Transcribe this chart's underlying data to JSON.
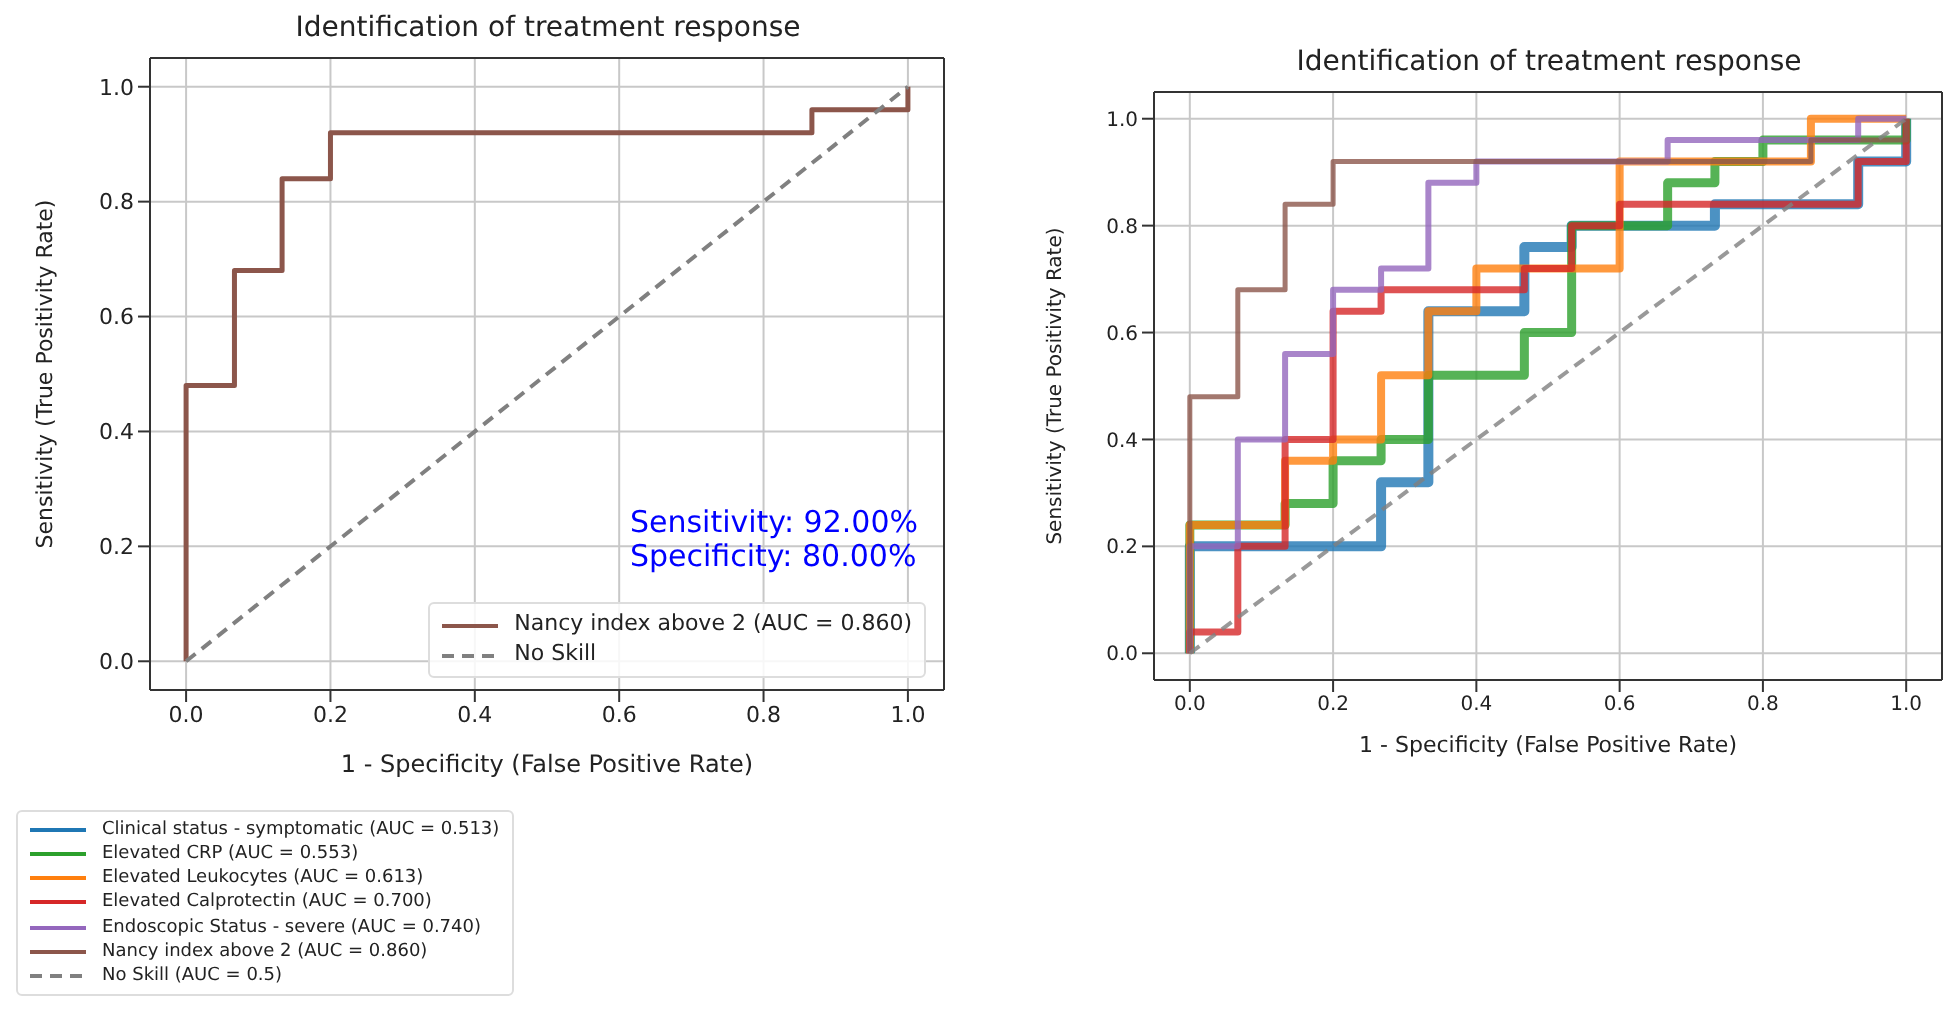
{
  "chart_data": [
    {
      "type": "step",
      "title": "Identification of treatment response",
      "xlabel": "1 - Specificity (False Positive Rate)",
      "ylabel": "Sensitivity (True Positivity Rate)",
      "xlim": [
        -0.05,
        1.05
      ],
      "ylim": [
        -0.05,
        1.05
      ],
      "xticks": [
        {
          "value": 0,
          "label": "0.0"
        },
        {
          "value": 0.2,
          "label": "0.2"
        },
        {
          "value": 0.4,
          "label": "0.4"
        },
        {
          "value": 0.6,
          "label": "0.6"
        },
        {
          "value": 0.8,
          "label": "0.8"
        },
        {
          "value": 1,
          "label": "1.0"
        }
      ],
      "yticks": [
        {
          "value": 0,
          "label": "0.0"
        },
        {
          "value": 0.2,
          "label": "0.2"
        },
        {
          "value": 0.4,
          "label": "0.4"
        },
        {
          "value": 0.6,
          "label": "0.6"
        },
        {
          "value": 0.8,
          "label": "0.8"
        },
        {
          "value": 1,
          "label": "1.0"
        }
      ],
      "grid": true,
      "legend": "lower right",
      "annotations": [
        "Sensitivity: 92.00%",
        "Specificity: 80.00%"
      ],
      "series": [
        {
          "name": "Nancy index above 2 (AUC = 0.860)",
          "color": "#8c564b",
          "x": [
            0,
            0,
            0.067,
            0.133,
            0.2,
            0.867,
            1
          ],
          "values": [
            0,
            0.48,
            0.68,
            0.84,
            0.92,
            0.96,
            1
          ]
        },
        {
          "name": "No Skill",
          "type": "line",
          "line_style": "dashed",
          "color": "#808080",
          "x": [
            0,
            1
          ],
          "values": [
            0,
            1
          ]
        }
      ]
    },
    {
      "type": "step",
      "title": "Identification of treatment response",
      "xlabel": "1 - Specificity (False Positive Rate)",
      "ylabel": "Sensitivity (True Positivity Rate)",
      "xlim": [
        -0.05,
        1.05
      ],
      "ylim": [
        -0.05,
        1.05
      ],
      "xticks": [
        {
          "value": 0,
          "label": "0.0"
        },
        {
          "value": 0.2,
          "label": "0.2"
        },
        {
          "value": 0.4,
          "label": "0.4"
        },
        {
          "value": 0.6,
          "label": "0.6"
        },
        {
          "value": 0.8,
          "label": "0.8"
        },
        {
          "value": 1,
          "label": "1.0"
        }
      ],
      "yticks": [
        {
          "value": 0,
          "label": "0.0"
        },
        {
          "value": 0.2,
          "label": "0.2"
        },
        {
          "value": 0.4,
          "label": "0.4"
        },
        {
          "value": 0.6,
          "label": "0.6"
        },
        {
          "value": 0.8,
          "label": "0.8"
        },
        {
          "value": 1,
          "label": "1.0"
        }
      ],
      "grid": true,
      "legend": "bottom left",
      "series": [
        {
          "name": "Clinical status - symptomatic (AUC = 0.513)",
          "color": "#1f77b4",
          "x": [
            0,
            0,
            0.267,
            0.333,
            0.467,
            0.533,
            0.733,
            0.933,
            1
          ],
          "values": [
            0,
            0.2,
            0.32,
            0.64,
            0.76,
            0.8,
            0.84,
            0.92,
            1
          ]
        },
        {
          "name": "Elevated CRP (AUC = 0.553)",
          "color": "#2ca02c",
          "x": [
            0,
            0,
            0.133,
            0.2,
            0.267,
            0.333,
            0.467,
            0.533,
            0.667,
            0.733,
            0.8,
            1
          ],
          "values": [
            0,
            0.24,
            0.28,
            0.36,
            0.4,
            0.52,
            0.6,
            0.8,
            0.88,
            0.92,
            0.96,
            1
          ]
        },
        {
          "name": "Elevated Leukocytes (AUC = 0.613)",
          "color": "#ff7f0e",
          "x": [
            0,
            0,
            0.133,
            0.2,
            0.267,
            0.333,
            0.4,
            0.6,
            0.867,
            1
          ],
          "values": [
            0,
            0.24,
            0.36,
            0.4,
            0.52,
            0.64,
            0.72,
            0.92,
            1,
            1
          ]
        },
        {
          "name": "Elevated Calprotectin (AUC = 0.700)",
          "color": "#d62728",
          "x": [
            0,
            0,
            0.067,
            0.133,
            0.2,
            0.267,
            0.467,
            0.533,
            0.6,
            0.933,
            1
          ],
          "values": [
            0,
            0.04,
            0.2,
            0.4,
            0.64,
            0.68,
            0.72,
            0.8,
            0.84,
            0.92,
            1
          ]
        },
        {
          "name": "Endoscopic Status - severe (AUC = 0.740)",
          "color": "#9467bd",
          "x": [
            0,
            0,
            0.067,
            0.133,
            0.2,
            0.267,
            0.333,
            0.4,
            0.667,
            0.933,
            1
          ],
          "values": [
            0,
            0.2,
            0.4,
            0.56,
            0.68,
            0.72,
            0.88,
            0.92,
            0.96,
            1,
            1
          ]
        },
        {
          "name": "Nancy index above 2 (AUC = 0.860)",
          "color": "#8c564b",
          "x": [
            0,
            0,
            0.067,
            0.133,
            0.2,
            0.867,
            1
          ],
          "values": [
            0,
            0.48,
            0.68,
            0.84,
            0.92,
            0.96,
            1
          ]
        },
        {
          "name": "No Skill (AUC = 0.5)",
          "type": "line",
          "line_style": "dashed",
          "color": "#808080",
          "x": [
            0,
            1
          ],
          "values": [
            0,
            1
          ]
        }
      ]
    }
  ]
}
